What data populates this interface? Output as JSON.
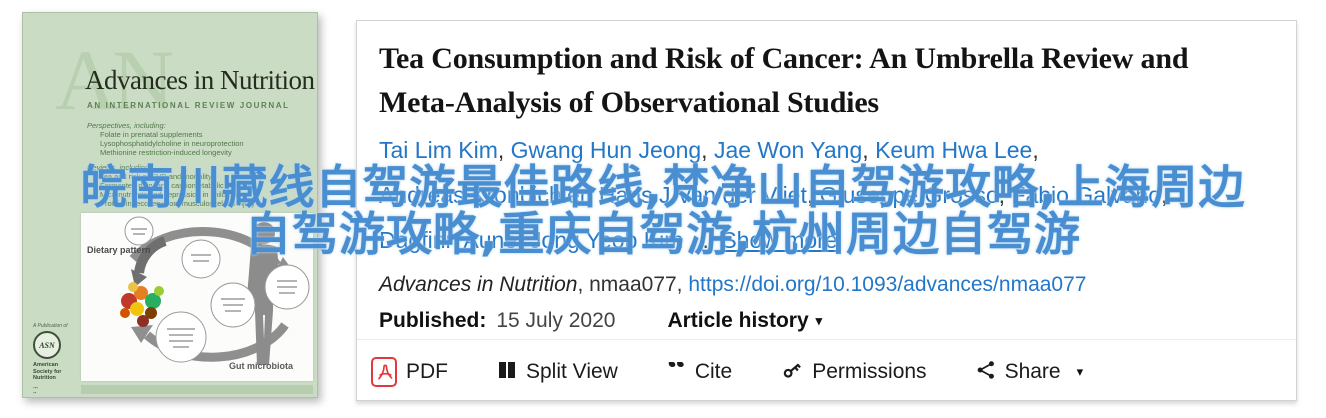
{
  "colors": {
    "link_blue": "#2277c8",
    "overlay_blue": "#4a8ed2",
    "pdf_red": "#e0393e",
    "cover_green": "#cbdcc5"
  },
  "overlay": {
    "line1": "皖南川藏线自驾游最佳路线,梵净山自驾游攻略,上海周边",
    "line2": "自驾游攻略,重庆自驾游,杭州周边自驾游"
  },
  "cover": {
    "watermark": "AN",
    "journal_title": "Advances in Nutrition",
    "subtitle": "AN INTERNATIONAL REVIEW JOURNAL",
    "perspectives_heading": "Perspectives, including:",
    "perspectives": [
      "Folate in prenatal supplements",
      "Lysophosphatidylcholine in neuroprotection",
      "Methionine restriction-induced longevity"
    ],
    "reviews_heading": "Reviews, including:",
    "reviews": [
      "Tea and risk of CVD and mortality",
      "Fermented dairy and cardiometabolic disease",
      "Micronutrients and depression in children",
      "Protein in recovery from musculoskeletal injury"
    ],
    "diagram": {
      "dietary_label": "Dietary pattern",
      "gut_label": "Gut microbiota"
    },
    "publisher": {
      "tagline": "A Publication of",
      "logo_text": "ASN",
      "name": "American Society for Nutrition"
    }
  },
  "article": {
    "title": "Tea Consumption and Risk of Cancer: An Umbrella Review and Meta-Analysis of Observational Studies",
    "authors_line1": [
      "Tai Lim Kim",
      "Gwang Hun Jeong",
      "Jae Won Yang",
      "Keum Hwa Lee"
    ],
    "authors_line2": [
      "Andreas Kronbichler",
      "Hans J Van der Vliet",
      "Giuseppe Grosso",
      "Fabio Galvano"
    ],
    "authors_line3": [
      "Dagfinn Aune",
      "Jong Yeob Kim"
    ],
    "ellipsis": " ... ",
    "show_more": "Show more",
    "journal_name": "Advances in Nutrition",
    "article_id": ", nmaa077, ",
    "doi_link": "https://doi.org/10.1093/advances/nmaa077",
    "published_label": "Published:",
    "published_date": "15 July 2020",
    "article_history": "Article history"
  },
  "toolbar": {
    "pdf": "PDF",
    "split_view": "Split View",
    "cite": "Cite",
    "permissions": "Permissions",
    "share": "Share"
  },
  "icons": {
    "cite_glyph": "“",
    "caret": "▾"
  }
}
